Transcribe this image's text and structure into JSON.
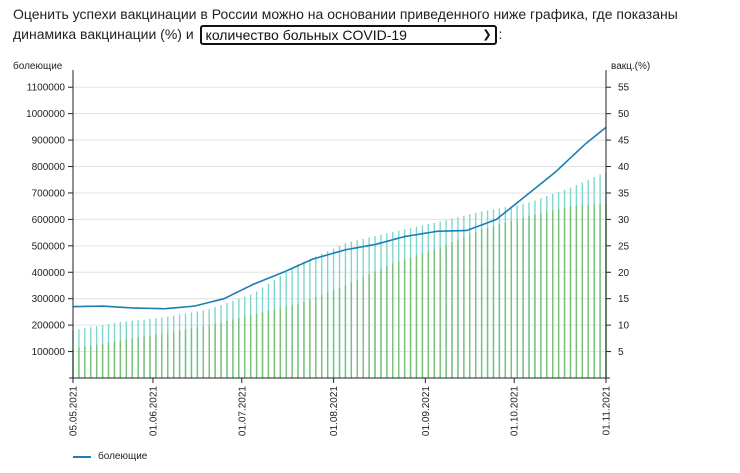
{
  "intro": {
    "text_before": "Оценить успехи вакцинации в России можно на основании приведенного ниже графика, где показаны динамика вакцинации (%) и ",
    "text_after": ":"
  },
  "metric_select": {
    "selected": "количество больных COVID-19",
    "arrow_icon": "chevron-down-icon"
  },
  "legend": {
    "label": "болеющие",
    "color": "#1a7fb5"
  },
  "chart_data": {
    "type": "bar+line",
    "left_axis": {
      "label": "болеющие",
      "range": [
        0,
        1150000
      ],
      "ticks": [
        100000,
        200000,
        300000,
        400000,
        500000,
        600000,
        700000,
        800000,
        900000,
        1000000,
        1100000
      ]
    },
    "right_axis": {
      "label": "вакц.(%)",
      "range": [
        0,
        57.5
      ],
      "ticks": [
        5,
        10,
        15,
        20,
        25,
        30,
        35,
        40,
        45,
        50,
        55
      ]
    },
    "x_axis": {
      "start": "2021-05-05",
      "end": "2021-11-01",
      "tick_labels": [
        "05.05.2021",
        "01.06.2021",
        "01.07.2021",
        "01.08.2021",
        "01.09.2021",
        "01.10.2021",
        "01.11.2021"
      ]
    },
    "grid": "horizontal",
    "series": [
      {
        "name": "болеющие",
        "axis": "left",
        "kind": "line",
        "color": "#1a7fb5",
        "points": [
          [
            "2021-05-05",
            270000
          ],
          [
            "2021-05-15",
            272000
          ],
          [
            "2021-05-25",
            265000
          ],
          [
            "2021-06-05",
            262000
          ],
          [
            "2021-06-15",
            272000
          ],
          [
            "2021-06-25",
            300000
          ],
          [
            "2021-07-05",
            355000
          ],
          [
            "2021-07-15",
            400000
          ],
          [
            "2021-07-25",
            450000
          ],
          [
            "2021-08-05",
            485000
          ],
          [
            "2021-08-15",
            505000
          ],
          [
            "2021-08-25",
            535000
          ],
          [
            "2021-09-05",
            555000
          ],
          [
            "2021-09-15",
            558000
          ],
          [
            "2021-09-25",
            600000
          ],
          [
            "2021-10-05",
            690000
          ],
          [
            "2021-10-15",
            780000
          ],
          [
            "2021-10-25",
            885000
          ],
          [
            "2021-11-01",
            948000
          ]
        ]
      },
      {
        "axis": "right",
        "kind": "bar",
        "color": "#7fd8cc",
        "points": [
          [
            "2021-05-05",
            9.0
          ],
          [
            "2021-05-20",
            10.5
          ],
          [
            "2021-06-05",
            11.5
          ],
          [
            "2021-06-20",
            13.0
          ],
          [
            "2021-07-05",
            16.0
          ],
          [
            "2021-07-20",
            21.5
          ],
          [
            "2021-08-05",
            25.5
          ],
          [
            "2021-08-20",
            27.5
          ],
          [
            "2021-09-05",
            29.5
          ],
          [
            "2021-09-20",
            31.5
          ],
          [
            "2021-10-05",
            33.0
          ],
          [
            "2021-10-20",
            36.0
          ],
          [
            "2021-11-01",
            39.0
          ]
        ]
      },
      {
        "axis": "right",
        "kind": "bar",
        "color": "#79c179",
        "points": [
          [
            "2021-05-05",
            5.5
          ],
          [
            "2021-05-20",
            7.0
          ],
          [
            "2021-06-05",
            8.5
          ],
          [
            "2021-06-20",
            10.0
          ],
          [
            "2021-07-05",
            12.0
          ],
          [
            "2021-07-20",
            14.0
          ],
          [
            "2021-08-05",
            17.5
          ],
          [
            "2021-08-20",
            21.5
          ],
          [
            "2021-09-05",
            24.5
          ],
          [
            "2021-09-20",
            28.0
          ],
          [
            "2021-10-05",
            30.5
          ],
          [
            "2021-10-20",
            32.5
          ],
          [
            "2021-11-01",
            33.0
          ]
        ]
      }
    ]
  }
}
